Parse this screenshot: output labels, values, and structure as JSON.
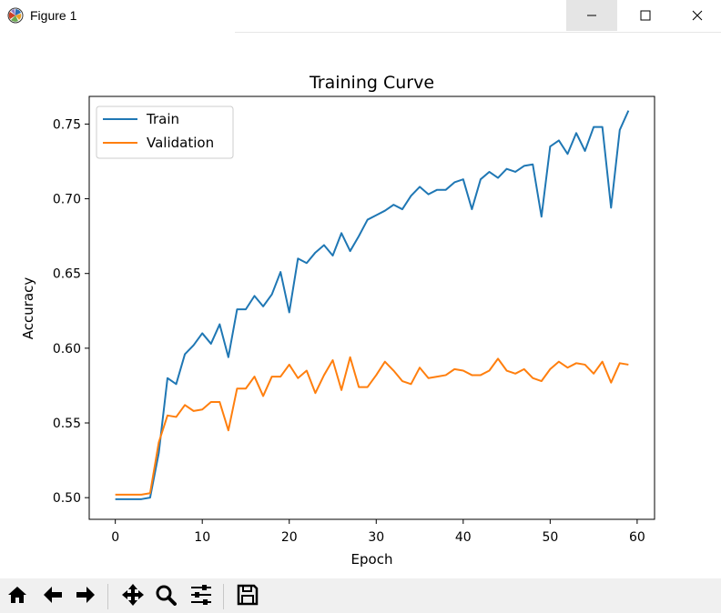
{
  "window": {
    "title": "Figure 1",
    "icons": {
      "app": "matplotlib-icon",
      "minimize": "minimize-icon",
      "maximize": "maximize-icon",
      "close": "close-icon"
    }
  },
  "toolbar": {
    "buttons": [
      {
        "name": "home-button",
        "icon": "home-icon"
      },
      {
        "name": "back-button",
        "icon": "arrow-left-icon"
      },
      {
        "name": "forward-button",
        "icon": "arrow-right-icon"
      },
      {
        "name": "pan-button",
        "icon": "move-icon"
      },
      {
        "name": "zoom-button",
        "icon": "magnifier-icon"
      },
      {
        "name": "configure-subplots-button",
        "icon": "sliders-icon"
      },
      {
        "name": "save-button",
        "icon": "floppy-disk-icon"
      }
    ]
  },
  "chart_data": {
    "type": "line",
    "title": "Training Curve",
    "xlabel": "Epoch",
    "ylabel": "Accuracy",
    "xlim": [
      -3,
      62
    ],
    "ylim": [
      0.4855,
      0.7685
    ],
    "xticks": [
      0,
      10,
      20,
      30,
      40,
      50,
      60
    ],
    "xtick_labels": [
      "0",
      "10",
      "20",
      "30",
      "40",
      "50",
      "60"
    ],
    "yticks": [
      0.5,
      0.55,
      0.6,
      0.65,
      0.7,
      0.75
    ],
    "ytick_labels": [
      "0.50",
      "0.55",
      "0.60",
      "0.65",
      "0.70",
      "0.75"
    ],
    "grid": false,
    "legend": "top-left",
    "x": [
      0,
      1,
      2,
      3,
      4,
      5,
      6,
      7,
      8,
      9,
      10,
      11,
      12,
      13,
      14,
      15,
      16,
      17,
      18,
      19,
      20,
      21,
      22,
      23,
      24,
      25,
      26,
      27,
      28,
      29,
      30,
      31,
      32,
      33,
      34,
      35,
      36,
      37,
      38,
      39,
      40,
      41,
      42,
      43,
      44,
      45,
      46,
      47,
      48,
      49,
      50,
      51,
      52,
      53,
      54,
      55,
      56,
      57,
      58,
      59
    ],
    "series": [
      {
        "name": "Train",
        "color": "#1f77b4",
        "values": [
          0.499,
          0.499,
          0.499,
          0.499,
          0.5,
          0.53,
          0.58,
          0.576,
          0.596,
          0.602,
          0.61,
          0.603,
          0.616,
          0.594,
          0.626,
          0.626,
          0.635,
          0.628,
          0.636,
          0.651,
          0.624,
          0.66,
          0.657,
          0.664,
          0.669,
          0.662,
          0.677,
          0.665,
          0.675,
          0.686,
          0.689,
          0.692,
          0.696,
          0.693,
          0.702,
          0.708,
          0.703,
          0.706,
          0.706,
          0.711,
          0.713,
          0.693,
          0.713,
          0.718,
          0.714,
          0.72,
          0.718,
          0.722,
          0.723,
          0.688,
          0.735,
          0.739,
          0.73,
          0.744,
          0.732,
          0.748,
          0.748,
          0.694,
          0.746,
          0.759
        ]
      },
      {
        "name": "Validation",
        "color": "#ff7f0e",
        "values": [
          0.502,
          0.502,
          0.502,
          0.502,
          0.503,
          0.537,
          0.555,
          0.554,
          0.562,
          0.558,
          0.559,
          0.564,
          0.564,
          0.545,
          0.573,
          0.573,
          0.581,
          0.568,
          0.581,
          0.581,
          0.589,
          0.58,
          0.585,
          0.57,
          0.582,
          0.592,
          0.572,
          0.594,
          0.574,
          0.574,
          0.582,
          0.591,
          0.585,
          0.578,
          0.576,
          0.587,
          0.58,
          0.581,
          0.582,
          0.586,
          0.585,
          0.582,
          0.582,
          0.585,
          0.593,
          0.585,
          0.583,
          0.586,
          0.58,
          0.578,
          0.586,
          0.591,
          0.587,
          0.59,
          0.589,
          0.583,
          0.591,
          0.577,
          0.59,
          0.589
        ]
      }
    ]
  }
}
